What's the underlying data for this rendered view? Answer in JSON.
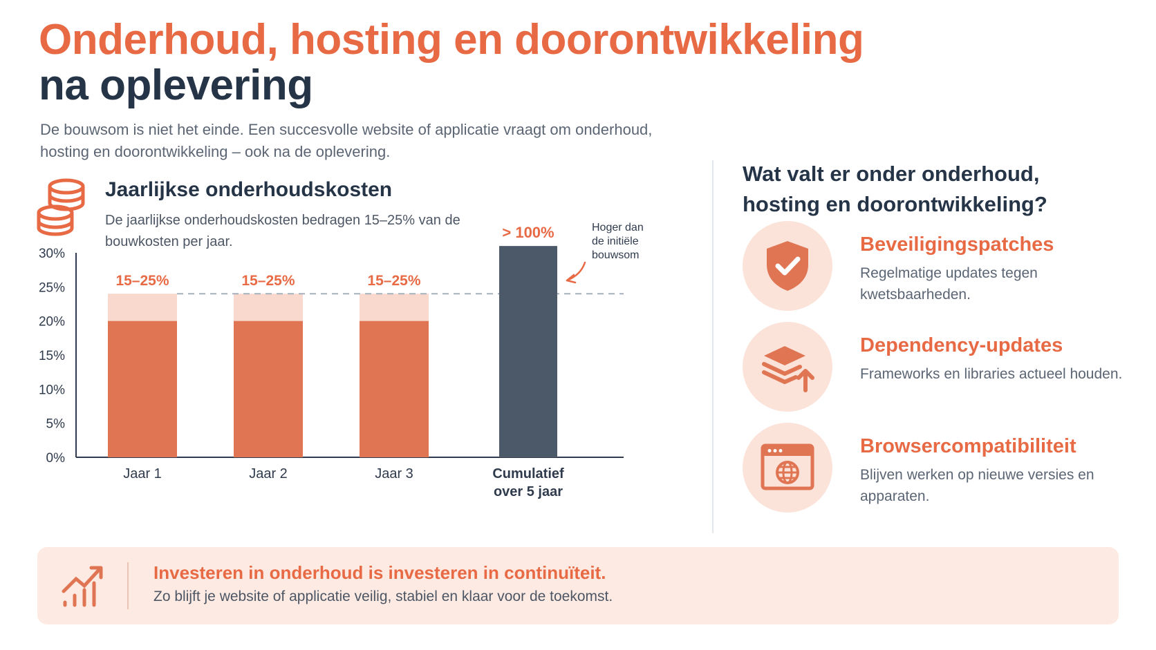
{
  "header": {
    "title_line1": "Onderhoud, hosting en doorontwikkeling",
    "title_line2": "na oplevering",
    "intro": "De bouwsom is niet het einde. Een succesvolle website of applicatie vraagt om onderhoud, hosting en doorontwikkeling – ook na de oplevering."
  },
  "chart_section": {
    "title": "Jaarlijkse onderhoudskosten",
    "subtitle": "De jaarlijkse onderhoudskosten bedragen 15–25% van de bouwkosten per jaar.",
    "icon": "coins-stack-icon"
  },
  "chart_data": {
    "type": "bar",
    "categories": [
      "Jaar 1",
      "Jaar 2",
      "Jaar 3",
      "Cumulatief over 5 jaar"
    ],
    "ranges": [
      [
        15,
        25
      ],
      [
        15,
        25
      ],
      [
        15,
        25
      ],
      [
        100,
        100
      ]
    ],
    "bar_low_display": [
      20,
      20,
      20
    ],
    "bar_high_display": [
      24,
      24,
      24
    ],
    "cumulative_display_value": 31,
    "data_labels": [
      "15–25%",
      "15–25%",
      "15–25%",
      "> 100%"
    ],
    "yticks": [
      "0%",
      "5%",
      "10%",
      "15%",
      "20%",
      "25%",
      "30%"
    ],
    "ylim": [
      0,
      30
    ],
    "reference_line": 24,
    "annotation": "Hoger dan de initiële bouwsom",
    "colors": {
      "bar": "#e07554",
      "bar_range": "#f9d9cd",
      "cumulative": "#4b5968",
      "reference": "#a6b0bd",
      "text": "#2f3b4c",
      "accent": "#e86a45"
    },
    "grid": false
  },
  "right": {
    "title": "Wat valt er onder onderhoud, hosting en doorontwikkeling?",
    "items": [
      {
        "icon": "shield-check-icon",
        "title": "Beveiligingspatches",
        "desc": "Regelmatige updates tegen kwetsbaarheden."
      },
      {
        "icon": "layers-upgrade-icon",
        "title": "Dependency-updates",
        "desc": "Frameworks en libraries actueel houden."
      },
      {
        "icon": "browser-globe-icon",
        "title": "Browsercompatibiliteit",
        "desc": "Blijven werken op nieuwe versies en apparaten."
      }
    ]
  },
  "banner": {
    "icon": "growth-chart-icon",
    "title": "Investeren in onderhoud is investeren in continuïteit.",
    "text": "Zo blijft je website of applicatie veilig, stabiel en klaar voor de toekomst."
  }
}
